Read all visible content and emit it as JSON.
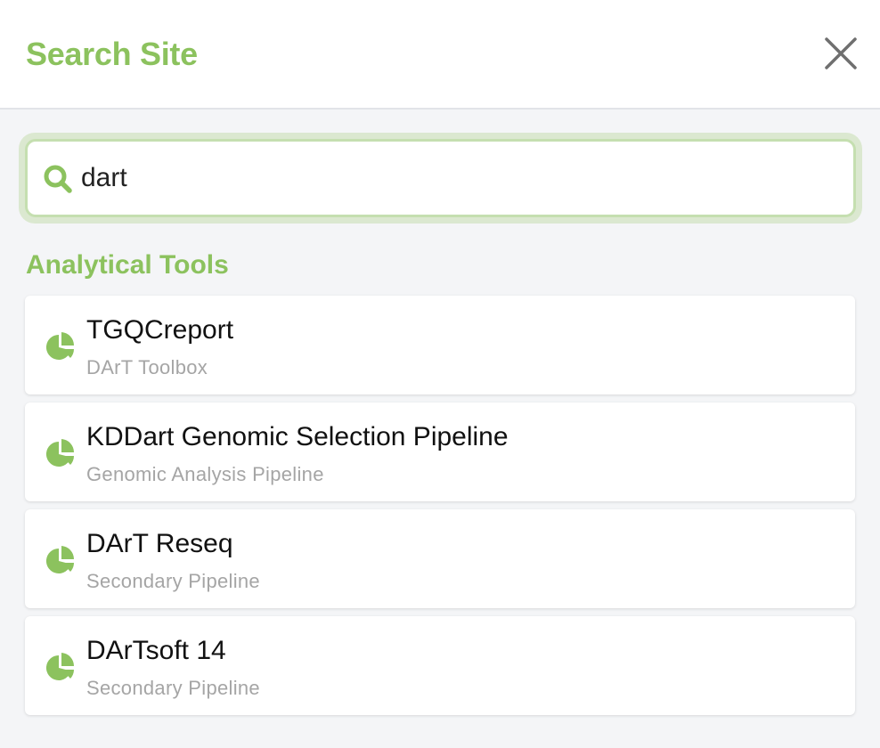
{
  "header": {
    "title": "Search Site",
    "close_icon": "close-icon"
  },
  "search": {
    "value": "dart",
    "icon": "search-icon"
  },
  "colors": {
    "accent": "#8cc25e",
    "background": "#f4f5f7",
    "subtitle": "#a5a5a5"
  },
  "results": {
    "section_title": "Analytical Tools",
    "items": [
      {
        "name": "TGQCreport",
        "category": "DArT Toolbox",
        "icon": "pie-chart-icon"
      },
      {
        "name": "KDDart Genomic Selection Pipeline",
        "category": "Genomic Analysis Pipeline",
        "icon": "pie-chart-icon"
      },
      {
        "name": "DArT Reseq",
        "category": "Secondary Pipeline",
        "icon": "pie-chart-icon"
      },
      {
        "name": "DArTsoft 14",
        "category": "Secondary Pipeline",
        "icon": "pie-chart-icon"
      }
    ]
  }
}
